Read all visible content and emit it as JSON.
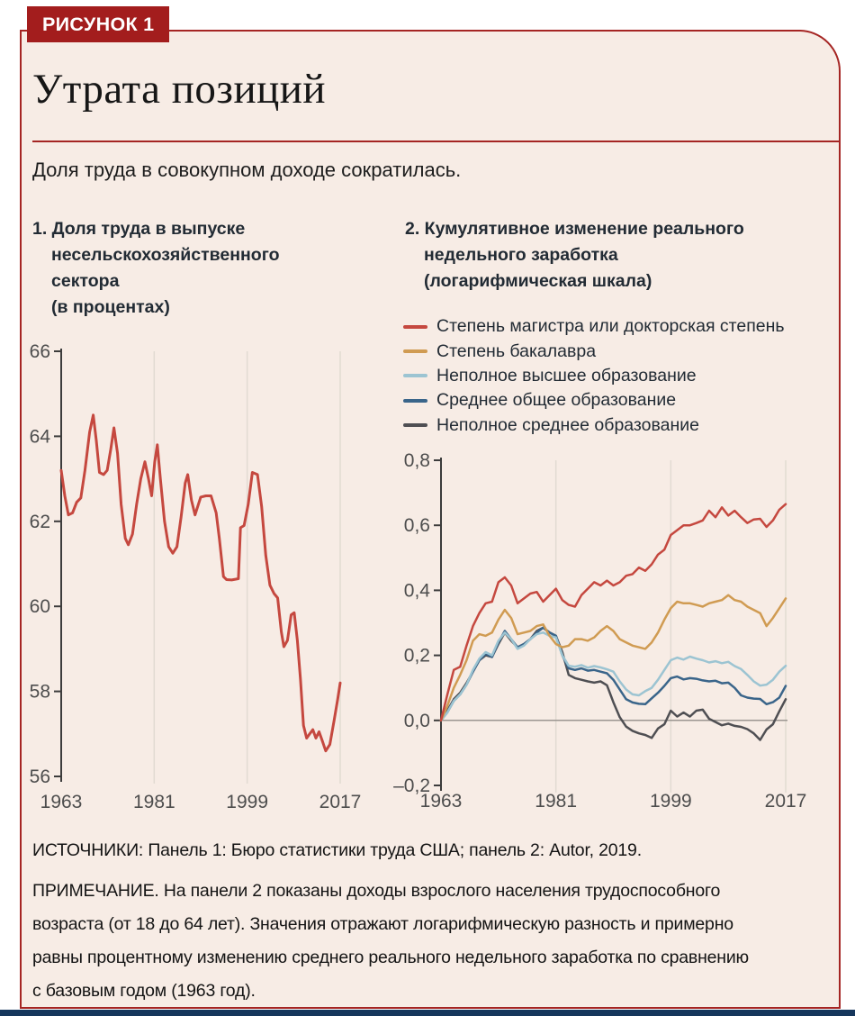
{
  "figure": {
    "label": "РИСУНОК 1",
    "title": "Утрата позиций",
    "subtitle": "Доля труда в совокупном доходе сократилась."
  },
  "colors": {
    "accent_red": "#a52523",
    "label_box": "#a31d1d",
    "card_bg": "#f7ece5",
    "grad": "#c5483f",
    "bachelor": "#d09b52",
    "some_college": "#9cc4d2",
    "high_school": "#3a658a",
    "less_hs": "#4f4f53",
    "bottom_bar": "#15365c"
  },
  "footer": {
    "sources": "ИСТОЧНИКИ: Панель 1: Бюро статистики труда США; панель 2: Autor, 2019.",
    "note_lines": [
      "ПРИМЕЧАНИЕ. На панели 2 показаны доходы взрослого населения трудоспособного",
      "возраста (от 18 до 64 лет). Значения отражают логарифмическую разность и примерно",
      "равны процентному изменению среднего реального недельного заработка по сравнению",
      "с базовым годом (1963 год)."
    ]
  },
  "chart_data": [
    {
      "type": "line",
      "title_lines": [
        "1. Доля труда в выпуске",
        "несельскохозяйственного",
        "сектора",
        "(в процентах)"
      ],
      "x_range": [
        1963,
        2017
      ],
      "y_range": [
        56,
        66
      ],
      "x_ticks": [
        1963,
        1981,
        1999,
        2017
      ],
      "y_ticks": [
        56,
        58,
        60,
        62,
        64,
        66
      ],
      "grid": "vertical-light",
      "series": [
        {
          "id": "labor-share",
          "name": "Доля труда в выпуске несельскохозяйственного сектора, %",
          "color": "#c5483f",
          "points": [
            [
              1963,
              63.2
            ],
            [
              1963.7,
              62.6
            ],
            [
              1964.4,
              62.15
            ],
            [
              1965.2,
              62.2
            ],
            [
              1966,
              62.45
            ],
            [
              1966.8,
              62.55
            ],
            [
              1967.6,
              63.2
            ],
            [
              1968.5,
              64.1
            ],
            [
              1969.2,
              64.5
            ],
            [
              1969.8,
              63.9
            ],
            [
              1970.4,
              63.15
            ],
            [
              1971.2,
              63.1
            ],
            [
              1971.9,
              63.2
            ],
            [
              1972.6,
              63.7
            ],
            [
              1973.2,
              64.2
            ],
            [
              1973.9,
              63.6
            ],
            [
              1974.6,
              62.4
            ],
            [
              1975.4,
              61.6
            ],
            [
              1976,
              61.45
            ],
            [
              1976.8,
              61.7
            ],
            [
              1977.6,
              62.4
            ],
            [
              1978.4,
              63.0
            ],
            [
              1979.2,
              63.4
            ],
            [
              1979.9,
              63.0
            ],
            [
              1980.5,
              62.6
            ],
            [
              1981.1,
              63.4
            ],
            [
              1981.6,
              63.8
            ],
            [
              1982.2,
              63.0
            ],
            [
              1983,
              62.0
            ],
            [
              1983.8,
              61.4
            ],
            [
              1984.6,
              61.25
            ],
            [
              1985.4,
              61.4
            ],
            [
              1986.2,
              62.1
            ],
            [
              1987,
              62.9
            ],
            [
              1987.5,
              63.1
            ],
            [
              1988.2,
              62.5
            ],
            [
              1988.9,
              62.15
            ],
            [
              1990,
              62.57
            ],
            [
              1991,
              62.6
            ],
            [
              1992,
              62.6
            ],
            [
              1993,
              62.2
            ],
            [
              1993.6,
              61.6
            ],
            [
              1994.4,
              60.7
            ],
            [
              1995,
              60.63
            ],
            [
              1996,
              60.62
            ],
            [
              1997.3,
              60.65
            ],
            [
              1997.7,
              61.85
            ],
            [
              1998.4,
              61.9
            ],
            [
              1999.2,
              62.4
            ],
            [
              2000,
              63.15
            ],
            [
              2001,
              63.1
            ],
            [
              2001.8,
              62.35
            ],
            [
              2002.6,
              61.2
            ],
            [
              2003.4,
              60.5
            ],
            [
              2004.2,
              60.3
            ],
            [
              2004.9,
              60.2
            ],
            [
              2005.6,
              59.4
            ],
            [
              2006.1,
              59.05
            ],
            [
              2006.8,
              59.2
            ],
            [
              2007.5,
              59.8
            ],
            [
              2008.1,
              59.85
            ],
            [
              2008.7,
              59.2
            ],
            [
              2009.3,
              58.3
            ],
            [
              2009.9,
              57.2
            ],
            [
              2010.5,
              56.9
            ],
            [
              2011.1,
              57.0
            ],
            [
              2011.7,
              57.1
            ],
            [
              2012.3,
              56.9
            ],
            [
              2012.9,
              57.05
            ],
            [
              2013.5,
              56.85
            ],
            [
              2014.2,
              56.6
            ],
            [
              2015,
              56.75
            ],
            [
              2015.8,
              57.3
            ],
            [
              2016.5,
              57.8
            ],
            [
              2017,
              58.2
            ]
          ]
        }
      ]
    },
    {
      "type": "line",
      "title_lines": [
        "2. Кумулятивное изменение реального",
        "недельного заработка",
        "(логарифмическая шкала)"
      ],
      "x_range": [
        1963,
        2017
      ],
      "y_range": [
        -0.2,
        0.8
      ],
      "x_ticks": [
        1963,
        1981,
        1999,
        2017
      ],
      "y_ticks": [
        0.8,
        0.6,
        0.4,
        0.2,
        0.0,
        -0.2
      ],
      "y_tick_labels": [
        "0,8",
        "0,6",
        "0,4",
        "0,2",
        "0,0",
        "–0,2"
      ],
      "zero_line": true,
      "grid": "vertical-light",
      "legend": [
        {
          "label": "Степень магистра или докторская степень",
          "color": "#c5483f"
        },
        {
          "label": "Степень бакалавра",
          "color": "#d09b52"
        },
        {
          "label": "Неполное высшее образование",
          "color": "#9cc4d2"
        },
        {
          "label": "Среднее общее образование",
          "color": "#3a658a"
        },
        {
          "label": "Неполное среднее образование",
          "color": "#4f4f53"
        }
      ],
      "years": [
        1963,
        1964,
        1965,
        1966,
        1967,
        1968,
        1969,
        1970,
        1971,
        1972,
        1973,
        1974,
        1975,
        1976,
        1977,
        1978,
        1979,
        1980,
        1981,
        1982,
        1983,
        1984,
        1985,
        1986,
        1987,
        1988,
        1989,
        1990,
        1991,
        1992,
        1993,
        1994,
        1995,
        1996,
        1997,
        1998,
        1999,
        2000,
        2001,
        2002,
        2003,
        2004,
        2005,
        2006,
        2007,
        2008,
        2009,
        2010,
        2011,
        2012,
        2013,
        2014,
        2015,
        2016,
        2017
      ],
      "series": [
        {
          "id": "grad",
          "name": "Степень магистра или докторская степень",
          "color": "#c5483f",
          "values": [
            0.0,
            0.08,
            0.155,
            0.165,
            0.23,
            0.29,
            0.33,
            0.36,
            0.365,
            0.425,
            0.44,
            0.415,
            0.36,
            0.375,
            0.39,
            0.395,
            0.365,
            0.385,
            0.405,
            0.37,
            0.355,
            0.35,
            0.385,
            0.405,
            0.425,
            0.415,
            0.43,
            0.415,
            0.425,
            0.445,
            0.45,
            0.47,
            0.46,
            0.48,
            0.51,
            0.525,
            0.57,
            0.585,
            0.6,
            0.6,
            0.607,
            0.615,
            0.645,
            0.625,
            0.655,
            0.63,
            0.645,
            0.625,
            0.607,
            0.618,
            0.62,
            0.595,
            0.615,
            0.648,
            0.665
          ]
        },
        {
          "id": "bachelor",
          "name": "Степень бакалавра",
          "color": "#d09b52",
          "values": [
            0.0,
            0.045,
            0.1,
            0.14,
            0.185,
            0.245,
            0.265,
            0.26,
            0.27,
            0.31,
            0.34,
            0.315,
            0.265,
            0.27,
            0.275,
            0.29,
            0.295,
            0.26,
            0.235,
            0.225,
            0.23,
            0.25,
            0.25,
            0.245,
            0.255,
            0.275,
            0.29,
            0.275,
            0.25,
            0.24,
            0.23,
            0.225,
            0.22,
            0.24,
            0.27,
            0.31,
            0.345,
            0.365,
            0.36,
            0.36,
            0.355,
            0.35,
            0.36,
            0.365,
            0.37,
            0.385,
            0.37,
            0.365,
            0.35,
            0.34,
            0.33,
            0.29,
            0.315,
            0.345,
            0.375
          ]
        },
        {
          "id": "some-college",
          "name": "Неполное высшее образование",
          "color": "#9cc4d2",
          "values": [
            0.0,
            0.025,
            0.06,
            0.08,
            0.11,
            0.155,
            0.19,
            0.21,
            0.2,
            0.245,
            0.27,
            0.25,
            0.22,
            0.23,
            0.25,
            0.265,
            0.27,
            0.26,
            0.255,
            0.2,
            0.168,
            0.165,
            0.17,
            0.162,
            0.167,
            0.163,
            0.157,
            0.15,
            0.12,
            0.095,
            0.08,
            0.077,
            0.09,
            0.1,
            0.125,
            0.155,
            0.185,
            0.193,
            0.187,
            0.196,
            0.19,
            0.185,
            0.178,
            0.182,
            0.176,
            0.18,
            0.167,
            0.158,
            0.14,
            0.12,
            0.107,
            0.11,
            0.125,
            0.15,
            0.168
          ]
        },
        {
          "id": "high-school",
          "name": "Среднее общее образование",
          "color": "#3a658a",
          "values": [
            0.0,
            0.025,
            0.06,
            0.08,
            0.11,
            0.15,
            0.185,
            0.205,
            0.195,
            0.24,
            0.275,
            0.25,
            0.225,
            0.235,
            0.25,
            0.27,
            0.285,
            0.27,
            0.26,
            0.2,
            0.16,
            0.155,
            0.16,
            0.153,
            0.155,
            0.15,
            0.145,
            0.125,
            0.095,
            0.065,
            0.055,
            0.051,
            0.05,
            0.068,
            0.085,
            0.106,
            0.13,
            0.135,
            0.126,
            0.13,
            0.128,
            0.123,
            0.12,
            0.122,
            0.114,
            0.116,
            0.1,
            0.077,
            0.07,
            0.067,
            0.066,
            0.05,
            0.056,
            0.07,
            0.106
          ]
        },
        {
          "id": "less-hs",
          "name": "Неполное среднее образование",
          "color": "#4f4f53",
          "values": [
            0.0,
            0.03,
            0.065,
            0.085,
            0.115,
            0.15,
            0.185,
            0.2,
            0.195,
            0.235,
            0.27,
            0.245,
            0.225,
            0.235,
            0.25,
            0.275,
            0.285,
            0.27,
            0.26,
            0.21,
            0.14,
            0.13,
            0.125,
            0.12,
            0.116,
            0.12,
            0.108,
            0.056,
            0.01,
            -0.019,
            -0.032,
            -0.04,
            -0.045,
            -0.054,
            -0.025,
            -0.012,
            0.03,
            0.012,
            0.024,
            0.012,
            0.03,
            0.033,
            0.005,
            -0.005,
            -0.015,
            -0.01,
            -0.017,
            -0.02,
            -0.027,
            -0.04,
            -0.06,
            -0.028,
            -0.012,
            0.028,
            0.065
          ]
        }
      ]
    }
  ]
}
